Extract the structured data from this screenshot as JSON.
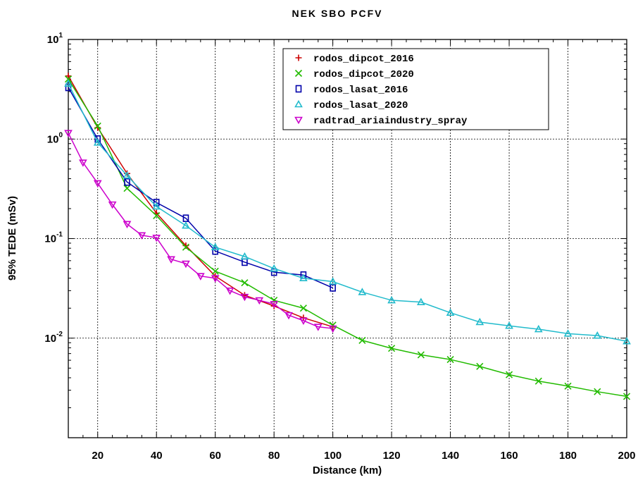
{
  "chart_data": {
    "type": "line",
    "title": "NEK SBO PCFV",
    "xlabel": "Distance (km)",
    "ylabel": "95% TEDE (mSv)",
    "y_scale": "log",
    "xlim": [
      10,
      200
    ],
    "ylim": [
      0.001,
      10
    ],
    "grid": true,
    "legend_position": "top-right",
    "x_ticks": [
      {
        "value": 20,
        "label": "20"
      },
      {
        "value": 40,
        "label": "40"
      },
      {
        "value": 60,
        "label": "60"
      },
      {
        "value": 80,
        "label": "80"
      },
      {
        "value": 100,
        "label": "100"
      },
      {
        "value": 120,
        "label": "120"
      },
      {
        "value": 140,
        "label": "140"
      },
      {
        "value": 160,
        "label": "160"
      },
      {
        "value": 180,
        "label": "180"
      },
      {
        "value": 200,
        "label": "200"
      }
    ],
    "y_ticks": [
      {
        "value": 10,
        "base": "10",
        "exp": "1"
      },
      {
        "value": 1,
        "base": "10",
        "exp": "0"
      },
      {
        "value": 0.1,
        "base": "10",
        "exp": "-1"
      },
      {
        "value": 0.01,
        "base": "10",
        "exp": "-2"
      }
    ],
    "series": [
      {
        "name": "rodos_dipcot_2016",
        "color": "#cc0000",
        "marker": "plus",
        "x": [
          10,
          20,
          30,
          40,
          50,
          60,
          70,
          80,
          90,
          100
        ],
        "y": [
          4.3,
          1.3,
          0.45,
          0.18,
          0.085,
          0.042,
          0.027,
          0.021,
          0.016,
          0.013
        ]
      },
      {
        "name": "rodos_dipcot_2020",
        "color": "#22bb00",
        "marker": "x",
        "x": [
          10,
          20,
          30,
          40,
          50,
          60,
          70,
          80,
          90,
          100,
          110,
          120,
          130,
          140,
          150,
          160,
          170,
          180,
          190,
          200
        ],
        "y": [
          4.0,
          1.35,
          0.32,
          0.17,
          0.082,
          0.047,
          0.036,
          0.024,
          0.02,
          0.0135,
          0.0095,
          0.0079,
          0.0068,
          0.0061,
          0.0052,
          0.0043,
          0.0037,
          0.0033,
          0.0029,
          0.0026
        ]
      },
      {
        "name": "rodos_lasat_2016",
        "color": "#0000aa",
        "marker": "square",
        "x": [
          10,
          20,
          30,
          40,
          50,
          60,
          70,
          80,
          90,
          100
        ],
        "y": [
          3.3,
          1.0,
          0.37,
          0.23,
          0.16,
          0.075,
          0.058,
          0.046,
          0.043,
          0.032
        ]
      },
      {
        "name": "rodos_lasat_2020",
        "color": "#22bbcc",
        "marker": "triangle-up",
        "x": [
          10,
          20,
          30,
          40,
          50,
          60,
          70,
          80,
          90,
          100,
          110,
          120,
          130,
          140,
          150,
          160,
          170,
          180,
          190,
          200
        ],
        "y": [
          3.6,
          0.92,
          0.43,
          0.21,
          0.135,
          0.082,
          0.066,
          0.05,
          0.04,
          0.037,
          0.029,
          0.024,
          0.023,
          0.018,
          0.0145,
          0.0133,
          0.0123,
          0.0111,
          0.0106,
          0.0093
        ]
      },
      {
        "name": "radtrad_ariaindustry_spray",
        "color": "#cc00cc",
        "marker": "triangle-down",
        "x": [
          10,
          15,
          20,
          25,
          30,
          35,
          40,
          45,
          50,
          55,
          60,
          65,
          70,
          75,
          80,
          85,
          90,
          95,
          100
        ],
        "y": [
          1.15,
          0.58,
          0.36,
          0.22,
          0.14,
          0.108,
          0.102,
          0.062,
          0.056,
          0.042,
          0.04,
          0.03,
          0.026,
          0.024,
          0.022,
          0.017,
          0.015,
          0.013,
          0.0125
        ]
      }
    ]
  }
}
